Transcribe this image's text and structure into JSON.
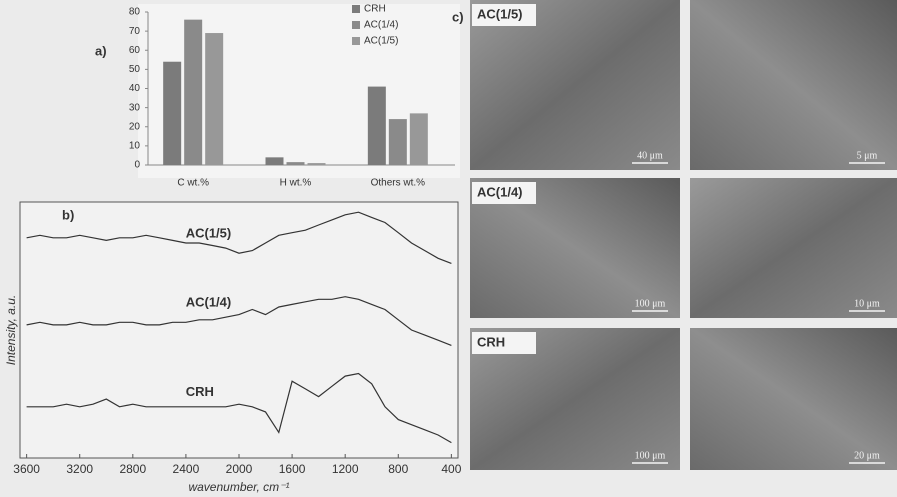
{
  "chart_data": [
    {
      "type": "bar",
      "label": "a)",
      "categories": [
        "C wt.%",
        "H wt.%",
        "Others wt.%"
      ],
      "series": [
        {
          "name": "CRH",
          "color": "#7b7b7b",
          "values": [
            54,
            4,
            41
          ]
        },
        {
          "name": "AC(1/4)",
          "color": "#8a8a8a",
          "values": [
            76,
            1.5,
            24
          ]
        },
        {
          "name": "AC(1/5)",
          "color": "#989898",
          "values": [
            69,
            1,
            27
          ]
        }
      ],
      "ylim": [
        0,
        80
      ],
      "yticks": [
        0,
        10,
        20,
        30,
        40,
        50,
        60,
        70,
        80
      ],
      "grid": false,
      "legend": "upper right"
    },
    {
      "type": "line",
      "label": "b)",
      "x_label": "wavenumber, cm⁻¹",
      "y_label": "Intensity, a.u.",
      "x": [
        3600,
        3500,
        3400,
        3300,
        3200,
        3100,
        3000,
        2900,
        2800,
        2700,
        2600,
        2500,
        2400,
        2300,
        2200,
        2100,
        2000,
        1900,
        1800,
        1700,
        1600,
        1500,
        1400,
        1300,
        1200,
        1100,
        1000,
        900,
        800,
        700,
        600,
        500,
        400
      ],
      "series": [
        {
          "name": "AC(1/5)",
          "color": "#333333",
          "values": [
            8.6,
            8.7,
            8.6,
            8.6,
            8.7,
            8.6,
            8.5,
            8.6,
            8.6,
            8.7,
            8.6,
            8.5,
            8.4,
            8.4,
            8.3,
            8.2,
            8.0,
            8.1,
            8.4,
            8.7,
            8.8,
            8.9,
            9.1,
            9.3,
            9.5,
            9.6,
            9.4,
            9.2,
            8.8,
            8.4,
            8.1,
            7.8,
            7.6
          ]
        },
        {
          "name": "AC(1/4)",
          "color": "#333333",
          "values": [
            5.2,
            5.3,
            5.2,
            5.2,
            5.3,
            5.2,
            5.2,
            5.3,
            5.3,
            5.2,
            5.2,
            5.3,
            5.3,
            5.4,
            5.4,
            5.5,
            5.6,
            5.8,
            5.6,
            5.9,
            6.0,
            6.1,
            6.2,
            6.2,
            6.3,
            6.2,
            6.0,
            5.8,
            5.4,
            5.0,
            4.8,
            4.6,
            4.4
          ]
        },
        {
          "name": "CRH",
          "color": "#333333",
          "values": [
            2.0,
            2.0,
            2.0,
            2.1,
            2.0,
            2.1,
            2.3,
            2.0,
            2.1,
            2.0,
            2.0,
            2.0,
            2.0,
            2.0,
            2.0,
            2.0,
            2.1,
            2.0,
            1.8,
            1.0,
            3.0,
            2.7,
            2.4,
            2.8,
            3.2,
            3.3,
            2.9,
            2.0,
            1.5,
            1.3,
            1.1,
            0.9,
            0.6
          ]
        }
      ],
      "xlim": [
        3650,
        350
      ],
      "xticks": [
        3600,
        3200,
        2800,
        2400,
        2000,
        1600,
        1200,
        800,
        400
      ],
      "ylim": [
        0,
        10
      ],
      "reverse_x": true
    }
  ],
  "images": {
    "label": "c)",
    "rows": [
      {
        "label": "AC(1/5)",
        "scales": [
          "40 μm",
          "5 μm"
        ]
      },
      {
        "label": "AC(1/4)",
        "scales": [
          "100 μm",
          "10 μm"
        ]
      },
      {
        "label": "CRH",
        "scales": [
          "100 μm",
          "20 μm"
        ]
      }
    ]
  }
}
